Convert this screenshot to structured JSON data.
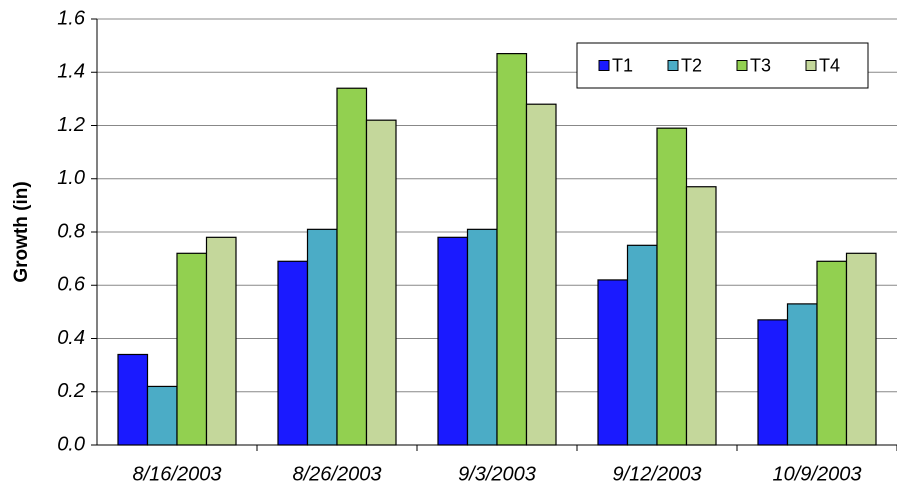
{
  "chart_data": {
    "type": "bar",
    "y_label": "Growth (in)",
    "categories": [
      "8/16/2003",
      "8/26/2003",
      "9/3/2003",
      "9/12/2003",
      "10/9/2003"
    ],
    "series": [
      {
        "name": "T1",
        "color": "#1a1aff",
        "values": [
          0.34,
          0.69,
          0.78,
          0.62,
          0.47
        ]
      },
      {
        "name": "T2",
        "color": "#4bacc6",
        "values": [
          0.22,
          0.81,
          0.81,
          0.75,
          0.53
        ]
      },
      {
        "name": "T3",
        "color": "#92d050",
        "values": [
          0.72,
          1.34,
          1.47,
          1.19,
          0.69
        ]
      },
      {
        "name": "T4",
        "color": "#c4d79b",
        "values": [
          0.78,
          1.22,
          1.28,
          0.97,
          0.72
        ]
      }
    ],
    "ylim": [
      0,
      1.6
    ],
    "yticks": [
      {
        "value": 0,
        "label": "0.0"
      },
      0.2,
      0.4,
      0.6,
      0.8,
      {
        "value": 1,
        "label": "1.0"
      },
      1.2,
      1.4,
      1.6
    ],
    "grid": true,
    "legend": "top-right"
  }
}
